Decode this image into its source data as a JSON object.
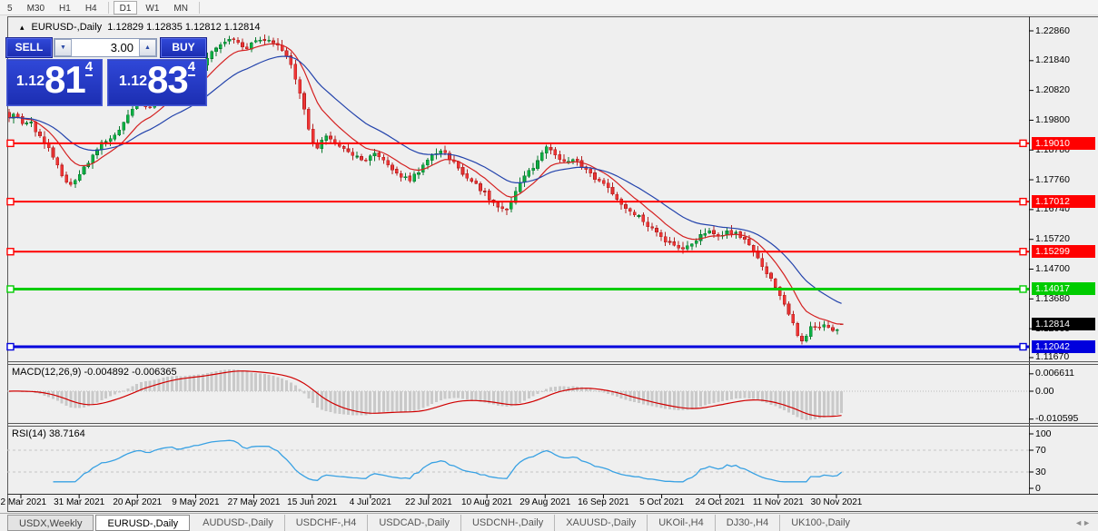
{
  "toolbar": {
    "buttons": [
      {
        "label": "5",
        "active": false
      },
      {
        "label": "M30",
        "active": false
      },
      {
        "label": "H1",
        "active": false
      },
      {
        "label": "H4",
        "active": false
      },
      {
        "label": "D1",
        "active": true
      },
      {
        "label": "W1",
        "active": false
      },
      {
        "label": "MN",
        "active": false
      }
    ]
  },
  "window": {
    "collapse_icon": "▴",
    "symbol": "EURUSD-,Daily",
    "quote_ohlc": "1.12829 1.12835 1.12812 1.12814"
  },
  "trade_panel": {
    "sell_label": "SELL",
    "buy_label": "BUY",
    "volume": "3.00",
    "spin_down": "▼",
    "spin_up": "▲",
    "sell_price": {
      "prefix": "1.12",
      "big": "81",
      "sup": "4"
    },
    "buy_price": {
      "prefix": "1.12",
      "big": "83",
      "sup": "4"
    }
  },
  "price_axis": {
    "ticks": [
      "1.22860",
      "1.21840",
      "1.20820",
      "1.19800",
      "1.18780",
      "1.17760",
      "1.16740",
      "1.15720",
      "1.14700",
      "1.13680",
      "1.12660",
      "1.11670"
    ],
    "current_price": {
      "label": "1.12814",
      "bg": "#000000"
    },
    "line_markers": [
      {
        "label": "1.19010",
        "bg": "#FF0000"
      },
      {
        "label": "1.17012",
        "bg": "#FF0000"
      },
      {
        "label": "1.15299",
        "bg": "#FF0000"
      },
      {
        "label": "1.14017",
        "bg": "#00CC00"
      },
      {
        "label": "1.12042",
        "bg": "#0000DD"
      }
    ]
  },
  "macd_panel": {
    "label": "MACD(12,26,9) -0.004892 -0.006365",
    "axis": [
      "0.006611",
      "0.00",
      "-0.010595"
    ],
    "histogram_color": "#C9C9C9",
    "signal_color": "#D00000"
  },
  "rsi_panel": {
    "label": "RSI(14) 38.7164",
    "axis": [
      "100",
      "70",
      "30",
      "0"
    ],
    "levels": [
      70,
      30
    ],
    "line_color": "#38A1E3"
  },
  "date_axis": {
    "labels": [
      "12 Mar 2021",
      "31 Mar 2021",
      "20 Apr 2021",
      "9 May 2021",
      "27 May 2021",
      "15 Jun 2021",
      "4 Jul 2021",
      "22 Jul 2021",
      "10 Aug 2021",
      "29 Aug 2021",
      "16 Sep 2021",
      "5 Oct 2021",
      "24 Oct 2021",
      "11 Nov 2021",
      "30 Nov 2021"
    ]
  },
  "tabs": {
    "items": [
      {
        "label": "USDX,Weekly",
        "style": "boxed"
      },
      {
        "label": "EURUSD-,Daily",
        "style": "active"
      },
      {
        "label": "AUDUSD-,Daily",
        "style": "plain"
      },
      {
        "label": "USDCHF-,H4",
        "style": "plain"
      },
      {
        "label": "USDCAD-,Daily",
        "style": "plain"
      },
      {
        "label": "USDCNH-,Daily",
        "style": "plain"
      },
      {
        "label": "XAUUSD-,Daily",
        "style": "plain"
      },
      {
        "label": "UKOil-,H4",
        "style": "plain"
      },
      {
        "label": "DJ30-,H4",
        "style": "plain"
      },
      {
        "label": "UK100-,Daily",
        "style": "plain"
      }
    ],
    "scroll_left": "◄",
    "scroll_right": "►"
  },
  "colors": {
    "up_fill": "#0CB043",
    "up_stroke": "#0A7A2F",
    "down_fill": "#EE3535",
    "down_stroke": "#B52020",
    "ma_fast": "#D42020",
    "ma_slow": "#2444AC",
    "hline_red": "#FF0000",
    "hline_green": "#00CC00",
    "hline_blue": "#0000DD"
  },
  "chart_data": {
    "type": "candlestick",
    "symbol": "EURUSD-",
    "timeframe": "Daily",
    "last_candle": {
      "open": 1.12829,
      "high": 1.12835,
      "low": 1.12812,
      "close": 1.12814
    },
    "indicators": [
      {
        "name": "MACD",
        "params": [
          12,
          26,
          9
        ],
        "values": [
          -0.004892,
          -0.006365
        ]
      },
      {
        "name": "RSI",
        "params": [
          14
        ],
        "value": 38.7164
      }
    ],
    "horizontal_lines": [
      {
        "value": 1.1901,
        "color": "#FF0000"
      },
      {
        "value": 1.17012,
        "color": "#FF0000"
      },
      {
        "value": 1.15299,
        "color": "#FF0000"
      },
      {
        "value": 1.14017,
        "color": "#00CC00"
      },
      {
        "value": 1.12042,
        "color": "#0000DD"
      }
    ],
    "price_axis_range": [
      1.1158,
      1.233
    ],
    "price_path": [
      [
        10,
        1.1995
      ],
      [
        17,
        1.2008
      ],
      [
        24,
        1.1962
      ],
      [
        32,
        1.198
      ],
      [
        40,
        1.1942
      ],
      [
        50,
        1.1902
      ],
      [
        58,
        1.1858
      ],
      [
        68,
        1.1795
      ],
      [
        78,
        1.1752
      ],
      [
        86,
        1.1788
      ],
      [
        96,
        1.1832
      ],
      [
        106,
        1.1878
      ],
      [
        114,
        1.1905
      ],
      [
        122,
        1.1912
      ],
      [
        132,
        1.195
      ],
      [
        142,
        1.2005
      ],
      [
        152,
        1.2043
      ],
      [
        163,
        1.2022
      ],
      [
        174,
        1.2068
      ],
      [
        186,
        1.2102
      ],
      [
        198,
        1.2088
      ],
      [
        210,
        1.2122
      ],
      [
        222,
        1.2162
      ],
      [
        232,
        1.2218
      ],
      [
        244,
        1.2245
      ],
      [
        258,
        1.2262
      ],
      [
        268,
        1.2222
      ],
      [
        280,
        1.2248
      ],
      [
        294,
        1.2258
      ],
      [
        306,
        1.2232
      ],
      [
        316,
        1.2205
      ],
      [
        324,
        1.214
      ],
      [
        332,
        1.2052
      ],
      [
        340,
        1.1942
      ],
      [
        348,
        1.1868
      ],
      [
        356,
        1.1928
      ],
      [
        366,
        1.191
      ],
      [
        378,
        1.1882
      ],
      [
        390,
        1.1862
      ],
      [
        402,
        1.1842
      ],
      [
        414,
        1.187
      ],
      [
        426,
        1.1828
      ],
      [
        438,
        1.1792
      ],
      [
        450,
        1.1775
      ],
      [
        462,
        1.1808
      ],
      [
        474,
        1.1856
      ],
      [
        486,
        1.1878
      ],
      [
        498,
        1.184
      ],
      [
        510,
        1.1795
      ],
      [
        522,
        1.1765
      ],
      [
        534,
        1.173
      ],
      [
        546,
        1.1688
      ],
      [
        556,
        1.1665
      ],
      [
        566,
        1.1722
      ],
      [
        576,
        1.1778
      ],
      [
        586,
        1.1815
      ],
      [
        596,
        1.1868
      ],
      [
        603,
        1.1893
      ],
      [
        612,
        1.1858
      ],
      [
        622,
        1.1832
      ],
      [
        634,
        1.1843
      ],
      [
        646,
        1.1806
      ],
      [
        658,
        1.1773
      ],
      [
        670,
        1.1749
      ],
      [
        682,
        1.17
      ],
      [
        694,
        1.1672
      ],
      [
        706,
        1.1642
      ],
      [
        718,
        1.1607
      ],
      [
        730,
        1.1573
      ],
      [
        742,
        1.1556
      ],
      [
        752,
        1.1537
      ],
      [
        762,
        1.1553
      ],
      [
        772,
        1.1585
      ],
      [
        782,
        1.1601
      ],
      [
        792,
        1.1586
      ],
      [
        802,
        1.1603
      ],
      [
        812,
        1.1586
      ],
      [
        820,
        1.1571
      ],
      [
        828,
        1.1546
      ],
      [
        836,
        1.1503
      ],
      [
        844,
        1.1458
      ],
      [
        852,
        1.142
      ],
      [
        858,
        1.139
      ],
      [
        864,
        1.1355
      ],
      [
        870,
        1.131
      ],
      [
        876,
        1.1255
      ],
      [
        882,
        1.1218
      ],
      [
        888,
        1.1242
      ],
      [
        894,
        1.1283
      ],
      [
        900,
        1.1262
      ],
      [
        906,
        1.1289
      ],
      [
        912,
        1.1271
      ],
      [
        918,
        1.1253
      ],
      [
        924,
        1.1273
      ],
      [
        927,
        1.12814
      ]
    ]
  }
}
